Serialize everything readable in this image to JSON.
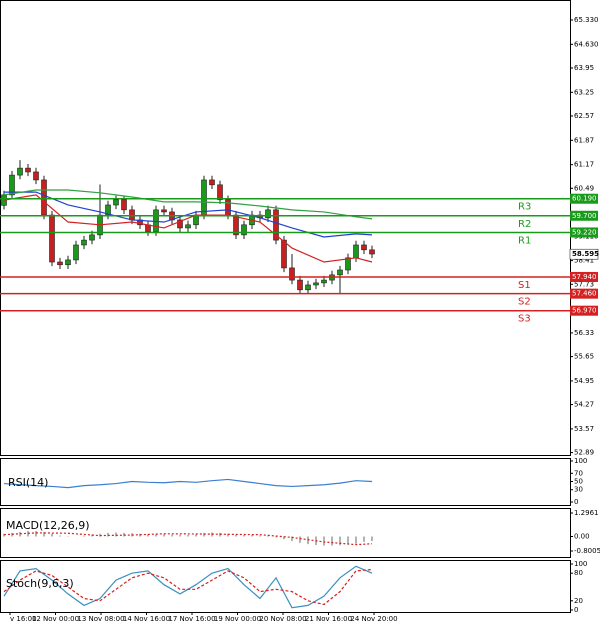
{
  "chart_data": [
    {
      "type": "candlestick",
      "up_color": "#1a9a1a",
      "down_color": "#c62020",
      "open": [
        60.0,
        60.3,
        60.87,
        61.07,
        60.96,
        60.73,
        59.72,
        58.37,
        58.29,
        58.43,
        58.86,
        59.0,
        59.15,
        59.72,
        60.01,
        60.16,
        59.87,
        59.58,
        59.44,
        59.24,
        59.87,
        59.81,
        59.58,
        59.35,
        59.44,
        59.72,
        60.73,
        60.59,
        60.16,
        59.72,
        59.15,
        59.44,
        59.72,
        59.64,
        59.87,
        59.0,
        58.2,
        57.85,
        57.57,
        57.71,
        57.77,
        57.85,
        58.0,
        58.14,
        58.49,
        58.86,
        58.72
      ],
      "high": [
        60.42,
        60.99,
        61.3,
        61.19,
        61.08,
        60.85,
        59.84,
        58.49,
        58.55,
        58.98,
        59.12,
        59.27,
        60.6,
        60.13,
        60.28,
        60.28,
        59.99,
        59.7,
        59.56,
        59.99,
        59.99,
        59.93,
        59.7,
        59.56,
        59.84,
        60.85,
        60.85,
        60.71,
        60.28,
        59.84,
        59.56,
        59.84,
        59.84,
        59.99,
        59.99,
        59.12,
        58.6,
        57.97,
        57.83,
        57.89,
        57.97,
        58.12,
        58.26,
        58.61,
        58.98,
        58.98,
        58.84
      ],
      "low": [
        59.88,
        60.18,
        60.75,
        60.84,
        60.61,
        59.6,
        58.25,
        58.17,
        58.17,
        58.31,
        58.74,
        58.88,
        59.03,
        59.6,
        59.89,
        59.75,
        59.46,
        59.32,
        59.12,
        59.12,
        59.69,
        59.46,
        59.23,
        59.23,
        59.32,
        59.6,
        60.47,
        60.04,
        59.6,
        59.03,
        59.03,
        59.32,
        59.52,
        59.52,
        58.88,
        58.08,
        57.73,
        57.45,
        57.45,
        57.59,
        57.65,
        57.73,
        57.45,
        58.02,
        58.37,
        58.6,
        58.48
      ],
      "close": [
        60.3,
        60.87,
        61.07,
        60.96,
        60.73,
        59.72,
        58.37,
        58.29,
        58.43,
        58.86,
        59.0,
        59.15,
        59.72,
        60.01,
        60.16,
        59.87,
        59.58,
        59.44,
        59.24,
        59.87,
        59.81,
        59.58,
        59.35,
        59.44,
        59.72,
        60.73,
        60.59,
        60.16,
        59.72,
        59.15,
        59.44,
        59.72,
        59.64,
        59.87,
        59.0,
        58.2,
        57.85,
        57.57,
        57.71,
        57.77,
        57.85,
        58.0,
        58.14,
        58.49,
        58.86,
        58.72,
        58.6
      ],
      "series": [
        {
          "color": "#d42020",
          "x": [
            0,
            4,
            8,
            12,
            16,
            20,
            24,
            28,
            32,
            36,
            40,
            44,
            46
          ],
          "values": [
            60.15,
            60.3,
            59.52,
            59.44,
            59.52,
            59.35,
            59.72,
            59.72,
            59.52,
            58.77,
            58.37,
            58.49,
            58.37
          ]
        },
        {
          "color": "#2040d0",
          "x": [
            0,
            4,
            8,
            12,
            16,
            20,
            24,
            28,
            32,
            36,
            40,
            44,
            46
          ],
          "values": [
            60.38,
            60.38,
            60.01,
            59.81,
            59.58,
            59.52,
            59.81,
            59.87,
            59.64,
            59.35,
            59.09,
            59.18,
            59.15
          ]
        },
        {
          "color": "#30a040",
          "x": [
            0,
            4,
            8,
            12,
            16,
            20,
            24,
            28,
            32,
            36,
            40,
            44,
            46
          ],
          "values": [
            60.3,
            60.44,
            60.44,
            60.36,
            60.24,
            60.1,
            60.1,
            60.07,
            59.98,
            59.87,
            59.81,
            59.67,
            59.61
          ]
        }
      ],
      "levels": [
        {
          "name": "R3",
          "value": 60.19,
          "label": "60.190",
          "color": "#1a9a1a"
        },
        {
          "name": "R2",
          "value": 59.7,
          "label": "59.700",
          "color": "#1a9a1a"
        },
        {
          "name": "R1",
          "value": 59.22,
          "label": "59.220",
          "color": "#1a9a1a"
        },
        {
          "name": "S1",
          "value": 57.94,
          "label": "57.940",
          "color": "#d42020"
        },
        {
          "name": "S2",
          "value": 57.46,
          "label": "57.460",
          "color": "#d42020"
        },
        {
          "name": "S3",
          "value": 56.97,
          "label": "56.970",
          "color": "#d42020"
        }
      ],
      "last_price": {
        "value": 58.595,
        "label": "58.595"
      },
      "ylim": [
        52.82,
        65.905
      ],
      "yticks": [
        {
          "value": 65.33,
          "label": "65.330"
        },
        {
          "value": 64.63,
          "label": "64.630"
        },
        63.95,
        63.25,
        62.57,
        61.87,
        61.17,
        60.49,
        {
          "value": 59.11,
          "label": "59.110"
        },
        58.41,
        57.73,
        56.33,
        55.65,
        54.95,
        54.27,
        53.57,
        52.89
      ]
    },
    {
      "type": "line",
      "series": [
        {
          "name": "RSI(14)",
          "color": "#3a7fd0",
          "x": [
            0,
            2,
            4,
            6,
            8,
            10,
            12,
            14,
            16,
            18,
            20,
            22,
            24,
            26,
            28,
            30,
            32,
            34,
            36,
            38,
            40,
            42,
            44,
            46
          ],
          "values": [
            45,
            42,
            40,
            38,
            35,
            40,
            42,
            45,
            50,
            48,
            47,
            50,
            48,
            52,
            55,
            50,
            45,
            40,
            38,
            40,
            42,
            46,
            52,
            50
          ]
        }
      ],
      "ylim": [
        0,
        100
      ],
      "yticks": [
        100,
        70,
        50,
        30,
        0
      ]
    },
    {
      "type": "macd",
      "label": "MACD(12,26,9)",
      "color": "#9a9a9a",
      "values": [
        0.15,
        0.2,
        0.25,
        0.3,
        0.3,
        0.25,
        0.15,
        0.05,
        -0.02,
        0.0,
        0.05,
        0.1,
        0.15,
        0.2,
        0.22,
        0.2,
        0.18,
        0.15,
        0.12,
        0.12,
        0.12,
        0.1,
        0.08,
        0.08,
        0.12,
        0.2,
        0.22,
        0.2,
        0.15,
        0.1,
        0.08,
        0.08,
        0.06,
        0.05,
        -0.05,
        -0.15,
        -0.25,
        -0.35,
        -0.42,
        -0.47,
        -0.5,
        -0.5,
        -0.48,
        -0.45,
        -0.4,
        -0.3,
        -0.25
      ],
      "signal": {
        "color": "#d42020",
        "x": [
          0,
          4,
          8,
          12,
          16,
          20,
          24,
          28,
          32,
          36,
          40,
          44,
          46
        ],
        "values": [
          0.1,
          0.2,
          0.18,
          0.05,
          0.08,
          0.15,
          0.14,
          0.12,
          0.1,
          -0.05,
          -0.3,
          -0.45,
          -0.4
        ]
      },
      "ylim": [
        -1.131,
        1.572
      ],
      "yticks": [
        1.2961,
        {
          "value": 0,
          "label": "0.00"
        },
        -0.8005
      ]
    },
    {
      "type": "stoch",
      "label": "Stoch(9,6,3)",
      "main": {
        "color": "#3a90c0",
        "x": [
          0,
          2,
          4,
          6,
          8,
          10,
          12,
          14,
          16,
          18,
          20,
          22,
          24,
          26,
          28,
          30,
          32,
          34,
          36,
          38,
          40,
          42,
          44,
          46
        ],
        "values": [
          30,
          85,
          90,
          65,
          35,
          10,
          25,
          65,
          80,
          85,
          55,
          35,
          55,
          80,
          90,
          55,
          25,
          70,
          5,
          10,
          30,
          70,
          95,
          80
        ]
      },
      "signal": {
        "color": "#d42020",
        "x": [
          0,
          2,
          4,
          6,
          8,
          10,
          12,
          14,
          16,
          18,
          20,
          22,
          24,
          26,
          28,
          30,
          32,
          34,
          36,
          38,
          40,
          42,
          44,
          46
        ],
        "values": [
          40,
          65,
          85,
          75,
          50,
          25,
          20,
          45,
          70,
          80,
          70,
          45,
          45,
          65,
          85,
          70,
          40,
          45,
          40,
          20,
          12,
          40,
          85,
          88
        ]
      },
      "ylim": [
        0,
        100
      ],
      "yticks": [
        100,
        80,
        20,
        0
      ]
    }
  ],
  "time_axis_labels": [
    "v 16:00",
    "12 Nov 00:00",
    "13 Nov 08:00",
    "14 Nov 16:00",
    "17 Nov 16:00",
    "19 Nov 00:00",
    "20 Nov 08:00",
    "21 Nov 16:00",
    "24 Nov 20:00"
  ]
}
